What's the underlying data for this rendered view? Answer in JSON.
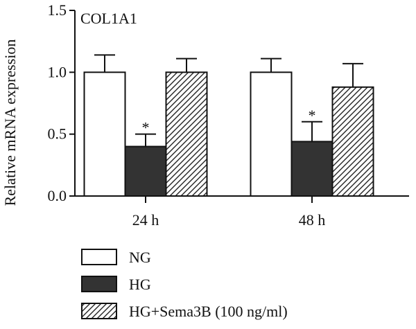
{
  "chart_data": {
    "type": "bar",
    "title": "COL1A1",
    "xlabel": "",
    "ylabel": "Relative mRNA expression",
    "categories": [
      "24 h",
      "48 h"
    ],
    "ylim": [
      0,
      1.5
    ],
    "yticks": [
      "0.0",
      "0.5",
      "1.0",
      "1.5"
    ],
    "series": [
      {
        "name": "NG",
        "values": [
          1.0,
          1.0
        ],
        "errors": [
          0.14,
          0.11
        ],
        "fill": "#ffffff",
        "pattern": "none",
        "markers": [
          "",
          ""
        ]
      },
      {
        "name": "HG",
        "values": [
          0.4,
          0.44
        ],
        "errors": [
          0.1,
          0.16
        ],
        "fill": "#333333",
        "pattern": "solid",
        "markers": [
          "*",
          "*"
        ]
      },
      {
        "name": "HG+Sema3B (100 ng/ml)",
        "values": [
          1.0,
          0.88
        ],
        "errors": [
          0.11,
          0.19
        ],
        "fill": "#ffffff",
        "pattern": "diagonal-hatch",
        "markers": [
          "",
          ""
        ]
      }
    ],
    "grid": false,
    "legend_position": "bottom"
  }
}
